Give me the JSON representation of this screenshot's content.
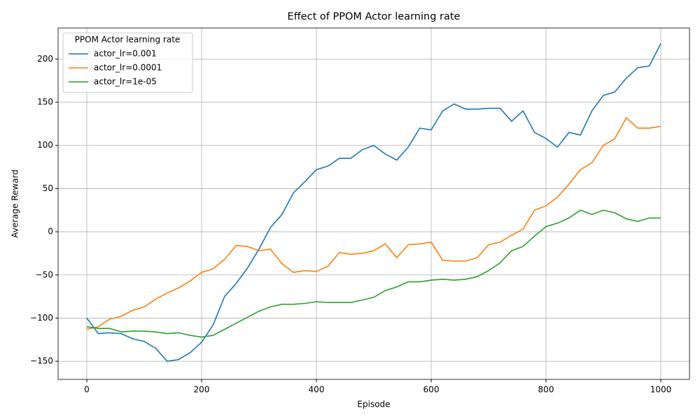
{
  "chart_data": {
    "type": "line",
    "title": "Effect of PPOM Actor learning rate",
    "x_label": "Episode",
    "y_label": "Average Reward",
    "legend_title": "PPOM Actor learning rate",
    "legend": "upper left",
    "grid": true,
    "x": [
      0,
      20,
      40,
      60,
      80,
      100,
      120,
      140,
      160,
      180,
      200,
      220,
      240,
      260,
      280,
      300,
      320,
      340,
      360,
      380,
      400,
      420,
      440,
      460,
      480,
      500,
      520,
      540,
      560,
      580,
      600,
      620,
      640,
      660,
      680,
      700,
      720,
      740,
      760,
      780,
      800,
      820,
      840,
      860,
      880,
      900,
      920,
      940,
      960,
      980,
      1000
    ],
    "series": [
      {
        "name": "actor_lr=0.001",
        "color": "#1f77b4",
        "values": [
          -100,
          -118,
          -117,
          -118,
          -124,
          -127,
          -135,
          -150,
          -148,
          -140,
          -128,
          -108,
          -75,
          -60,
          -42,
          -20,
          5,
          20,
          45,
          58,
          72,
          76,
          85,
          85,
          95,
          100,
          90,
          83,
          98,
          120,
          118,
          140,
          148,
          142,
          142,
          143,
          143,
          128,
          140,
          115,
          108,
          98,
          115,
          112,
          140,
          158,
          162,
          178,
          190,
          192,
          218
        ]
      },
      {
        "name": "actor_lr=0.0001",
        "color": "#ff7f0e",
        "values": [
          -113,
          -110,
          -101,
          -98,
          -91,
          -87,
          -78,
          -71,
          -65,
          -57,
          -47,
          -43,
          -32,
          -16,
          -17,
          -22,
          -20,
          -37,
          -47,
          -45,
          -46,
          -40,
          -24,
          -26,
          -25,
          -22,
          -14,
          -30,
          -15,
          -14,
          -12,
          -33,
          -34,
          -34,
          -30,
          -15,
          -12,
          -4,
          3,
          25,
          30,
          40,
          55,
          72,
          80,
          100,
          108,
          132,
          120,
          120,
          122
        ]
      },
      {
        "name": "actor_lr=1e-05",
        "color": "#2ca02c",
        "values": [
          -110,
          -112,
          -112,
          -116,
          -115,
          -115,
          -116,
          -118,
          -117,
          -120,
          -122,
          -120,
          -113,
          -106,
          -99,
          -92,
          -87,
          -84,
          -84,
          -83,
          -81,
          -82,
          -82,
          -82,
          -79,
          -76,
          -68,
          -64,
          -58,
          -58,
          -56,
          -55,
          -56,
          -55,
          -52,
          -45,
          -36,
          -22,
          -17,
          -5,
          6,
          10,
          16,
          25,
          20,
          25,
          22,
          15,
          12,
          16,
          16
        ]
      }
    ],
    "xlim": [
      -50,
      1050
    ],
    "ylim": [
      -171,
      236
    ],
    "xticks": [
      0,
      200,
      400,
      600,
      800,
      1000
    ],
    "yticks": [
      {
        "value": -150,
        "label": "−150"
      },
      {
        "value": -100,
        "label": "−100"
      },
      {
        "value": -50,
        "label": "−50"
      },
      0,
      50,
      100,
      150,
      200
    ]
  }
}
